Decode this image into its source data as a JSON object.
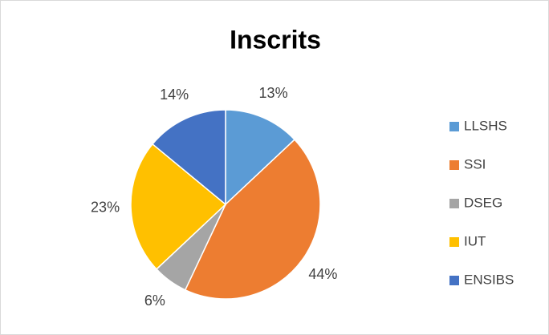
{
  "chart_data": {
    "type": "pie",
    "title": "Inscrits",
    "categories": [
      "LLSHS",
      "SSI",
      "DSEG",
      "IUT",
      "ENSIBS"
    ],
    "values": [
      13,
      44,
      6,
      23,
      14
    ],
    "value_labels": [
      "13%",
      "44%",
      "6%",
      "23%",
      "14%"
    ],
    "colors": [
      "#5b9bd5",
      "#ed7d31",
      "#a5a5a5",
      "#ffc000",
      "#4472c4"
    ],
    "legend": "right"
  }
}
